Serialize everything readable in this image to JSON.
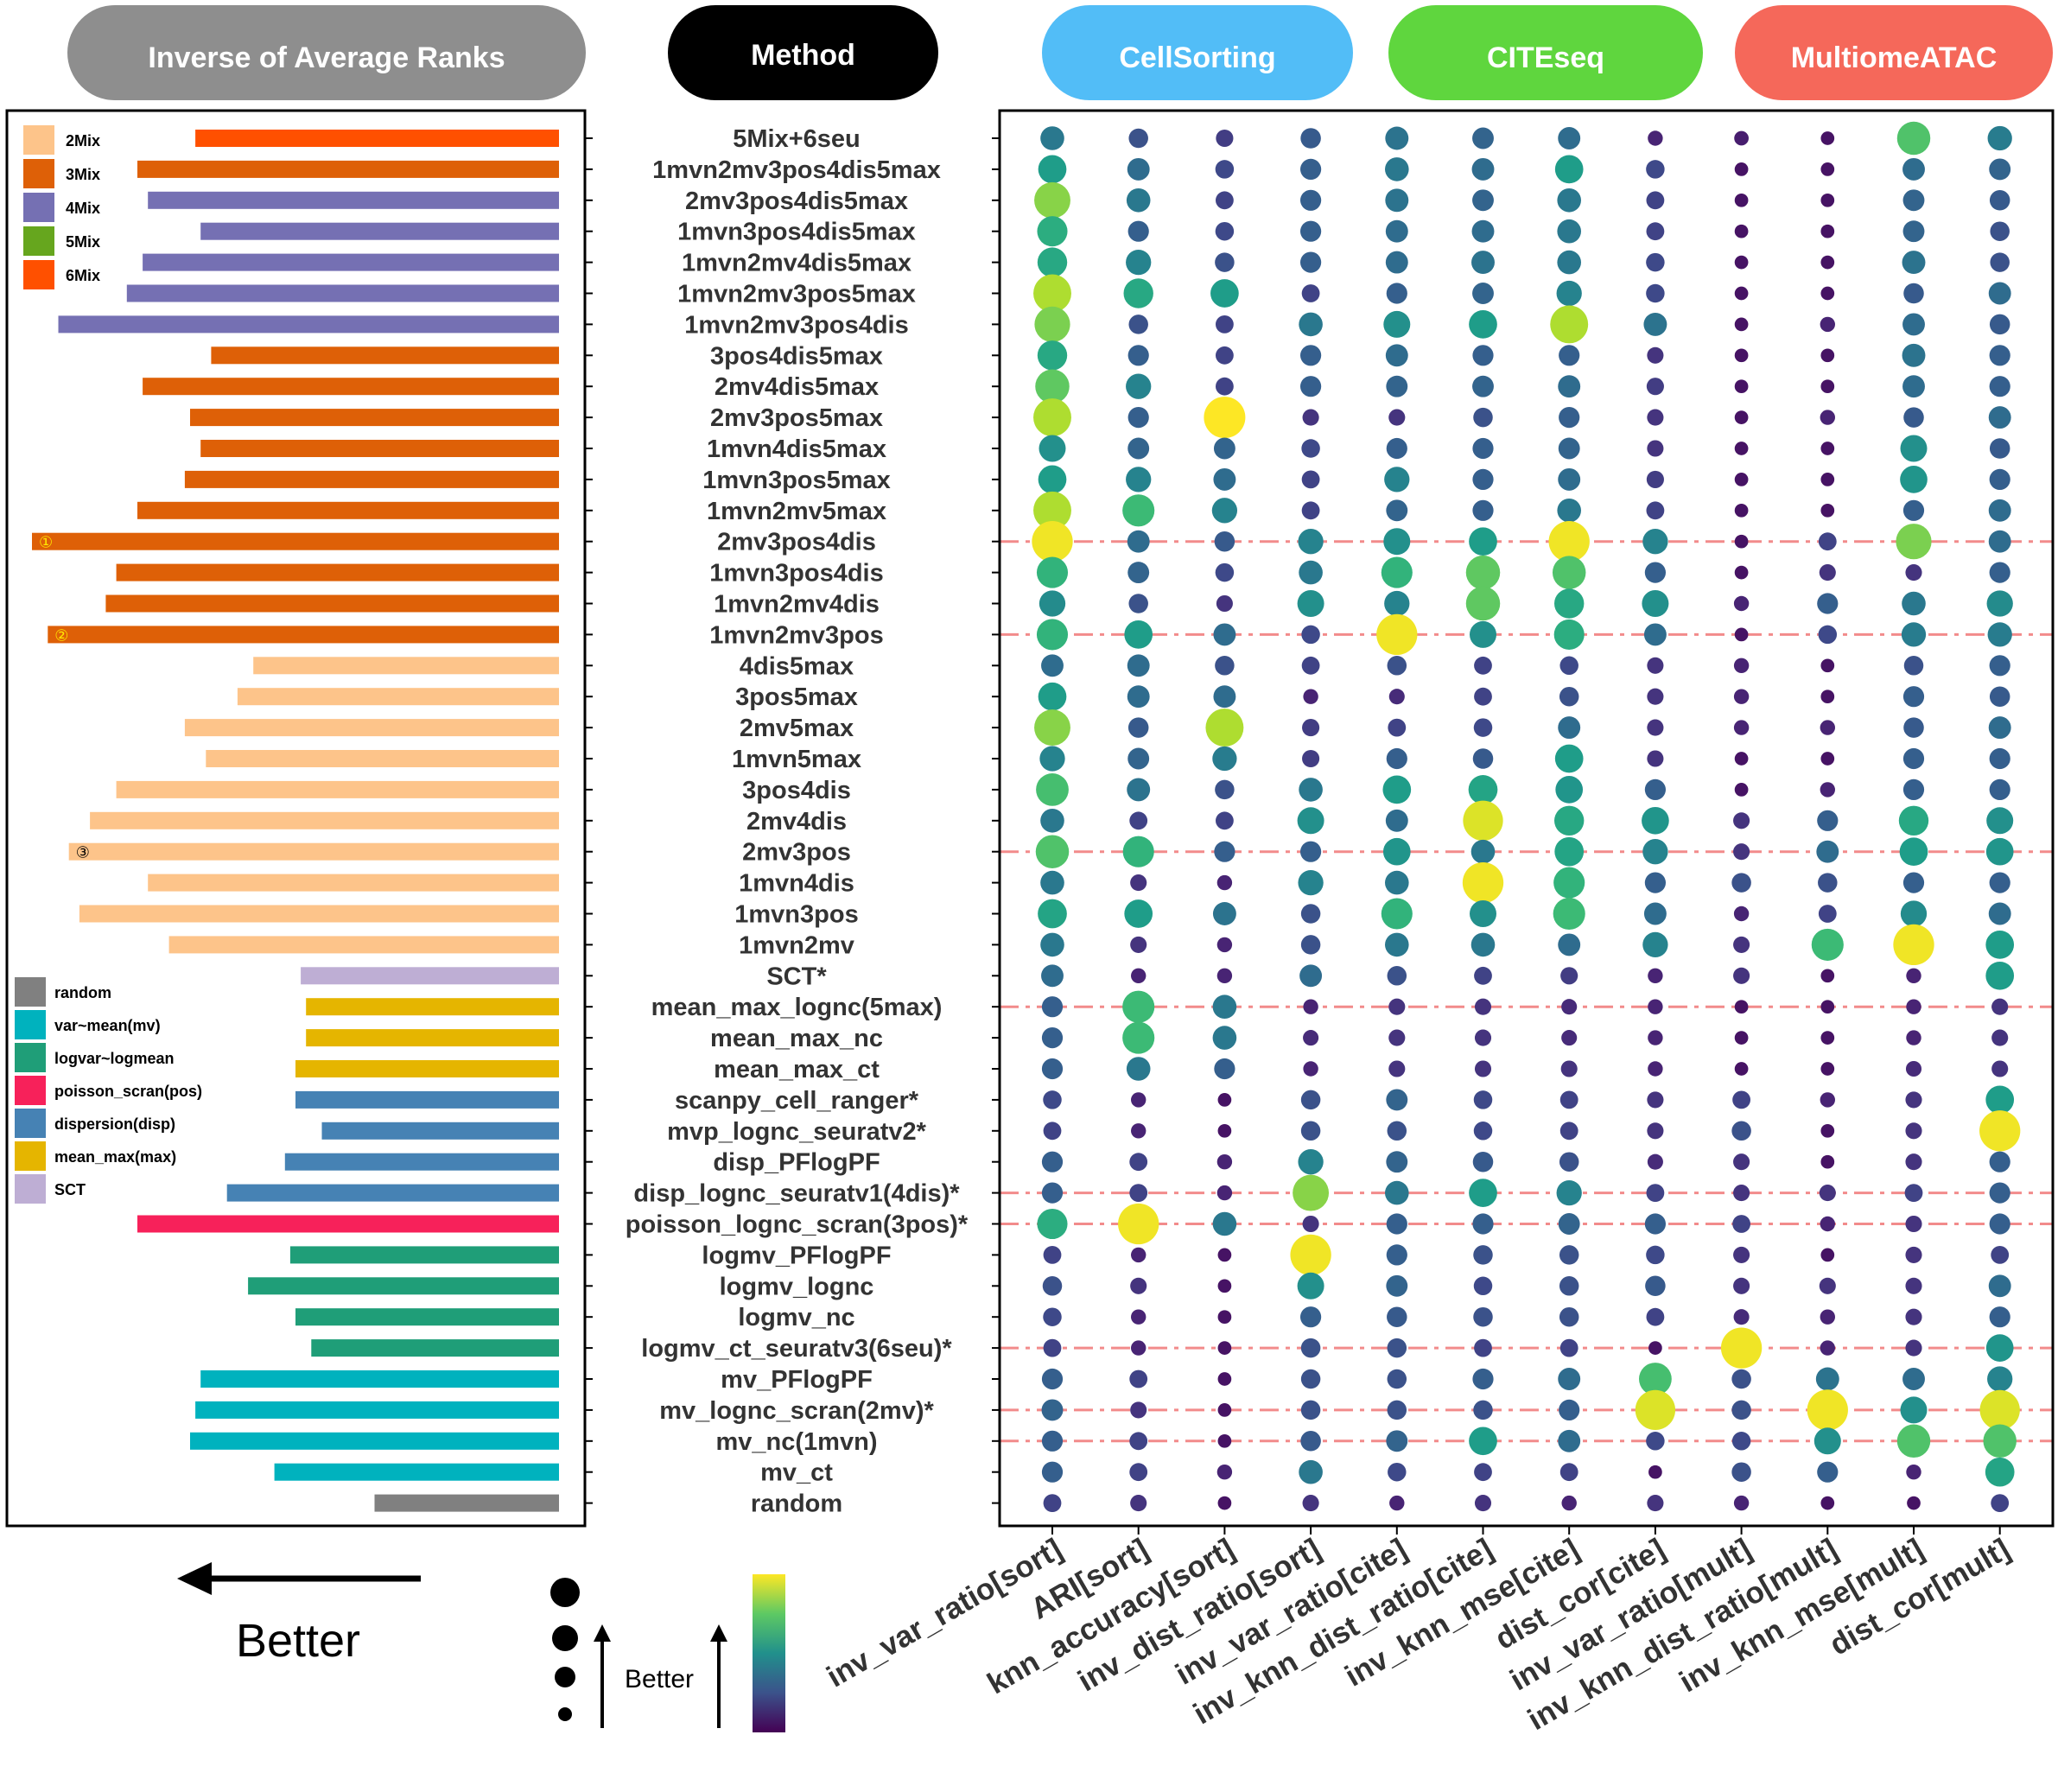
{
  "chart_data": {
    "type": "dot-matrix",
    "headers": {
      "rank": "Inverse of Average Ranks",
      "method": "Method",
      "groups": [
        {
          "label": "CellSorting",
          "color": "#52BDF7"
        },
        {
          "label": "CITEseq",
          "color": "#5FD63E"
        },
        {
          "label": "MultiomeATAC",
          "color": "#F5685A"
        }
      ],
      "rank_color": "#8E8E8E",
      "method_color": "#000000"
    },
    "methods": [
      "5Mix+6seu",
      "1mvn2mv3pos4dis5max",
      "2mv3pos4dis5max",
      "1mvn3pos4dis5max",
      "1mvn2mv4dis5max",
      "1mvn2mv3pos5max",
      "1mvn2mv3pos4dis",
      "3pos4dis5max",
      "2mv4dis5max",
      "2mv3pos5max",
      "1mvn4dis5max",
      "1mvn3pos5max",
      "1mvn2mv5max",
      "2mv3pos4dis",
      "1mvn3pos4dis",
      "1mvn2mv4dis",
      "1mvn2mv3pos",
      "4dis5max",
      "3pos5max",
      "2mv5max",
      "1mvn5max",
      "3pos4dis",
      "2mv4dis",
      "2mv3pos",
      "1mvn4dis",
      "1mvn3pos",
      "1mvn2mv",
      "SCT*",
      "mean_max_lognc(5max)",
      "mean_max_nc",
      "mean_max_ct",
      "scanpy_cell_ranger*",
      "mvp_lognc_seuratv2*",
      "disp_PFlogPF",
      "disp_lognc_seuratv1(4dis)*",
      "poisson_lognc_scran(3pos)*",
      "logmv_PFlogPF",
      "logmv_lognc",
      "logmv_nc",
      "logmv_ct_seuratv3(6seu)*",
      "mv_PFlogPF",
      "mv_lognc_scran(2mv)*",
      "mv_nc(1mvn)",
      "mv_ct",
      "random"
    ],
    "inverse_avg_rank": [
      0.69,
      0.8,
      0.78,
      0.68,
      0.79,
      0.82,
      0.95,
      0.66,
      0.79,
      0.7,
      0.68,
      0.71,
      0.8,
      1.0,
      0.84,
      0.86,
      0.97,
      0.58,
      0.61,
      0.71,
      0.67,
      0.84,
      0.89,
      0.93,
      0.78,
      0.91,
      0.74,
      0.49,
      0.48,
      0.48,
      0.5,
      0.5,
      0.45,
      0.52,
      0.63,
      0.8,
      0.51,
      0.59,
      0.5,
      0.47,
      0.68,
      0.69,
      0.7,
      0.54,
      0.35
    ],
    "categories": [
      "6Mix",
      "3Mix",
      "4Mix",
      "4Mix",
      "4Mix",
      "4Mix",
      "4Mix",
      "3Mix",
      "3Mix",
      "3Mix",
      "3Mix",
      "3Mix",
      "3Mix",
      "3Mix",
      "3Mix",
      "3Mix",
      "3Mix",
      "2Mix",
      "2Mix",
      "2Mix",
      "2Mix",
      "2Mix",
      "2Mix",
      "2Mix",
      "2Mix",
      "2Mix",
      "2Mix",
      "SCT",
      "mean_max(max)",
      "mean_max(max)",
      "mean_max(max)",
      "dispersion(disp)",
      "dispersion(disp)",
      "dispersion(disp)",
      "dispersion(disp)",
      "poisson_scran(pos)",
      "logvar~logmean",
      "logvar~logmean",
      "logvar~logmean",
      "logvar~logmean",
      "var~mean(mv)",
      "var~mean(mv)",
      "var~mean(mv)",
      "var~mean(mv)",
      "random"
    ],
    "category_colors": {
      "2Mix": "#FDC48A",
      "3Mix": "#DE6007",
      "4Mix": "#7570B3",
      "5Mix": "#66A61E",
      "6Mix": "#FF5000",
      "random": "#808080",
      "var~mean(mv)": "#00B2BE",
      "logvar~logmean": "#1F9E78",
      "poisson_scran(pos)": "#F7215A",
      "dispersion(disp)": "#4682B4",
      "mean_max(max)": "#E5B500",
      "SCT": "#BEAED4"
    },
    "legend_top": [
      "2Mix",
      "3Mix",
      "4Mix",
      "5Mix",
      "6Mix"
    ],
    "legend_bottom": [
      "random",
      "var~mean(mv)",
      "logvar~logmean",
      "poisson_scran(pos)",
      "dispersion(disp)",
      "mean_max(max)",
      "SCT"
    ],
    "bar_markers": [
      {
        "row": 13,
        "label": "①"
      },
      {
        "row": 16,
        "label": "②"
      },
      {
        "row": 23,
        "label": "③"
      }
    ],
    "metrics": [
      "inv_var_ratio[sort]",
      "ARI[sort]",
      "knn_accuracy[sort]",
      "inv_dist_ratio[sort]",
      "inv_var_ratio[cite]",
      "inv_knn_dist_ratio[cite]",
      "inv_knn_mse[cite]",
      "dist_cor[cite]",
      "inv_var_ratio[mult]",
      "inv_knn_dist_ratio[mult]",
      "inv_knn_mse[mult]",
      "dist_cor[mult]"
    ],
    "metric_groups": [
      "CellSorting",
      "CellSorting",
      "CellSorting",
      "CellSorting",
      "CITEseq",
      "CITEseq",
      "CITEseq",
      "CITEseq",
      "MultiomeATAC",
      "MultiomeATAC",
      "MultiomeATAC",
      "MultiomeATAC"
    ],
    "values": [
      [
        0.4,
        0.25,
        0.18,
        0.28,
        0.38,
        0.32,
        0.35,
        0.1,
        0.08,
        0.05,
        0.72,
        0.42
      ],
      [
        0.55,
        0.35,
        0.22,
        0.3,
        0.4,
        0.35,
        0.55,
        0.22,
        0.05,
        0.05,
        0.35,
        0.32
      ],
      [
        0.82,
        0.4,
        0.2,
        0.3,
        0.38,
        0.32,
        0.4,
        0.2,
        0.05,
        0.05,
        0.32,
        0.28
      ],
      [
        0.62,
        0.3,
        0.22,
        0.3,
        0.35,
        0.35,
        0.4,
        0.2,
        0.05,
        0.05,
        0.32,
        0.25
      ],
      [
        0.6,
        0.45,
        0.25,
        0.3,
        0.35,
        0.38,
        0.4,
        0.22,
        0.05,
        0.05,
        0.38,
        0.25
      ],
      [
        0.88,
        0.6,
        0.55,
        0.2,
        0.3,
        0.32,
        0.45,
        0.22,
        0.05,
        0.05,
        0.28,
        0.35
      ],
      [
        0.8,
        0.25,
        0.2,
        0.4,
        0.5,
        0.55,
        0.88,
        0.38,
        0.05,
        0.1,
        0.35,
        0.28
      ],
      [
        0.6,
        0.3,
        0.2,
        0.3,
        0.35,
        0.3,
        0.3,
        0.15,
        0.05,
        0.05,
        0.38,
        0.3
      ],
      [
        0.75,
        0.45,
        0.2,
        0.3,
        0.32,
        0.32,
        0.35,
        0.18,
        0.05,
        0.05,
        0.35,
        0.3
      ],
      [
        0.88,
        0.3,
        1.0,
        0.15,
        0.15,
        0.25,
        0.3,
        0.15,
        0.05,
        0.1,
        0.28,
        0.35
      ],
      [
        0.5,
        0.32,
        0.32,
        0.22,
        0.3,
        0.3,
        0.32,
        0.15,
        0.05,
        0.05,
        0.5,
        0.28
      ],
      [
        0.55,
        0.45,
        0.35,
        0.2,
        0.45,
        0.3,
        0.35,
        0.18,
        0.05,
        0.05,
        0.52,
        0.3
      ],
      [
        0.88,
        0.68,
        0.45,
        0.2,
        0.32,
        0.3,
        0.4,
        0.2,
        0.05,
        0.05,
        0.3,
        0.35
      ],
      [
        0.98,
        0.35,
        0.28,
        0.45,
        0.5,
        0.55,
        0.98,
        0.45,
        0.05,
        0.2,
        0.8,
        0.35
      ],
      [
        0.65,
        0.32,
        0.22,
        0.4,
        0.65,
        0.75,
        0.72,
        0.3,
        0.05,
        0.15,
        0.15,
        0.3
      ],
      [
        0.48,
        0.25,
        0.15,
        0.5,
        0.45,
        0.75,
        0.6,
        0.5,
        0.1,
        0.3,
        0.4,
        0.48
      ],
      [
        0.65,
        0.55,
        0.35,
        0.22,
        0.98,
        0.5,
        0.62,
        0.35,
        0.05,
        0.22,
        0.42,
        0.42
      ],
      [
        0.35,
        0.35,
        0.25,
        0.2,
        0.25,
        0.2,
        0.22,
        0.15,
        0.1,
        0.05,
        0.25,
        0.3
      ],
      [
        0.55,
        0.35,
        0.35,
        0.1,
        0.12,
        0.2,
        0.25,
        0.15,
        0.1,
        0.05,
        0.3,
        0.28
      ],
      [
        0.82,
        0.28,
        0.88,
        0.18,
        0.2,
        0.22,
        0.35,
        0.15,
        0.1,
        0.1,
        0.28,
        0.35
      ],
      [
        0.45,
        0.32,
        0.42,
        0.18,
        0.3,
        0.28,
        0.55,
        0.15,
        0.05,
        0.05,
        0.3,
        0.3
      ],
      [
        0.7,
        0.38,
        0.25,
        0.4,
        0.55,
        0.58,
        0.52,
        0.3,
        0.05,
        0.1,
        0.3,
        0.3
      ],
      [
        0.4,
        0.2,
        0.2,
        0.5,
        0.35,
        0.95,
        0.6,
        0.52,
        0.15,
        0.3,
        0.6,
        0.5
      ],
      [
        0.72,
        0.65,
        0.3,
        0.3,
        0.52,
        0.4,
        0.58,
        0.45,
        0.15,
        0.35,
        0.55,
        0.52
      ],
      [
        0.4,
        0.15,
        0.1,
        0.45,
        0.4,
        0.98,
        0.65,
        0.3,
        0.25,
        0.25,
        0.3,
        0.3
      ],
      [
        0.58,
        0.55,
        0.38,
        0.25,
        0.65,
        0.5,
        0.68,
        0.35,
        0.1,
        0.2,
        0.48,
        0.35
      ],
      [
        0.4,
        0.15,
        0.1,
        0.25,
        0.4,
        0.4,
        0.35,
        0.45,
        0.15,
        0.68,
        0.98,
        0.55
      ],
      [
        0.35,
        0.1,
        0.1,
        0.35,
        0.25,
        0.2,
        0.18,
        0.1,
        0.15,
        0.05,
        0.1,
        0.55
      ],
      [
        0.3,
        0.68,
        0.4,
        0.1,
        0.15,
        0.15,
        0.12,
        0.1,
        0.05,
        0.05,
        0.1,
        0.15
      ],
      [
        0.3,
        0.68,
        0.4,
        0.12,
        0.15,
        0.15,
        0.12,
        0.1,
        0.05,
        0.05,
        0.1,
        0.15
      ],
      [
        0.3,
        0.4,
        0.3,
        0.1,
        0.15,
        0.15,
        0.15,
        0.1,
        0.05,
        0.05,
        0.12,
        0.15
      ],
      [
        0.22,
        0.1,
        0.05,
        0.25,
        0.32,
        0.22,
        0.2,
        0.15,
        0.2,
        0.1,
        0.15,
        0.55
      ],
      [
        0.2,
        0.1,
        0.05,
        0.25,
        0.25,
        0.22,
        0.2,
        0.15,
        0.25,
        0.05,
        0.15,
        0.98
      ],
      [
        0.3,
        0.2,
        0.1,
        0.45,
        0.32,
        0.28,
        0.25,
        0.12,
        0.15,
        0.05,
        0.15,
        0.3
      ],
      [
        0.3,
        0.2,
        0.1,
        0.82,
        0.4,
        0.55,
        0.45,
        0.2,
        0.15,
        0.15,
        0.2,
        0.3
      ],
      [
        0.62,
        0.98,
        0.4,
        0.15,
        0.3,
        0.3,
        0.32,
        0.3,
        0.2,
        0.1,
        0.15,
        0.3
      ],
      [
        0.2,
        0.1,
        0.05,
        0.98,
        0.3,
        0.25,
        0.25,
        0.22,
        0.15,
        0.05,
        0.15,
        0.2
      ],
      [
        0.25,
        0.15,
        0.05,
        0.5,
        0.32,
        0.22,
        0.25,
        0.28,
        0.15,
        0.15,
        0.15,
        0.35
      ],
      [
        0.22,
        0.1,
        0.05,
        0.3,
        0.28,
        0.25,
        0.25,
        0.2,
        0.12,
        0.1,
        0.15,
        0.3
      ],
      [
        0.2,
        0.1,
        0.05,
        0.25,
        0.25,
        0.2,
        0.2,
        0.05,
        0.98,
        0.1,
        0.15,
        0.52
      ],
      [
        0.3,
        0.2,
        0.05,
        0.25,
        0.25,
        0.3,
        0.35,
        0.7,
        0.25,
        0.38,
        0.35,
        0.45
      ],
      [
        0.32,
        0.15,
        0.05,
        0.25,
        0.25,
        0.25,
        0.3,
        0.95,
        0.25,
        0.98,
        0.5,
        0.95
      ],
      [
        0.3,
        0.2,
        0.05,
        0.28,
        0.32,
        0.55,
        0.35,
        0.22,
        0.22,
        0.5,
        0.72,
        0.72
      ],
      [
        0.3,
        0.2,
        0.1,
        0.4,
        0.22,
        0.2,
        0.2,
        0.05,
        0.25,
        0.3,
        0.1,
        0.58
      ],
      [
        0.2,
        0.15,
        0.05,
        0.15,
        0.1,
        0.15,
        0.1,
        0.15,
        0.1,
        0.05,
        0.05,
        0.2
      ]
    ],
    "highlight_rows": [
      13,
      16,
      23,
      28,
      34,
      35,
      39,
      41,
      42
    ],
    "annotations": {
      "arrow_label": "Better",
      "size_legend_label": "Better"
    },
    "colormap": "viridis"
  }
}
